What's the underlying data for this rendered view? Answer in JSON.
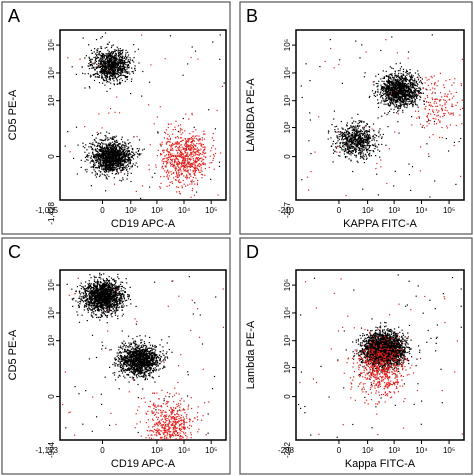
{
  "colors": {
    "population_a": "#000000",
    "population_b": "#e0201c",
    "frame": "#000000"
  },
  "chart_data": [
    {
      "type": "scatter",
      "panel": "A",
      "xlabel": "CD19 APC-A",
      "ylabel": "CD5 PE-A",
      "x_scale": "biexponential",
      "y_scale": "biexponential",
      "xlim_label": "-1,005",
      "ylim_label": "-1,428",
      "x_ticks": [
        "0",
        "10²",
        "10³",
        "10⁴",
        "10⁵"
      ],
      "y_ticks": [
        "0",
        "10³",
        "10⁴",
        "10⁵"
      ],
      "x_tick_values": [
        0,
        100,
        1000,
        10000,
        100000
      ],
      "y_tick_values": [
        0,
        1000,
        10000,
        100000
      ],
      "series": [
        {
          "clusters": [
            {
              "x": 10,
              "y": 20000,
              "count": 900
            },
            {
              "x": 10,
              "y": 0,
              "count": 1300
            }
          ]
        },
        {
          "clusters": [
            {
              "x": 10000,
              "y": 0,
              "count": 700
            }
          ]
        }
      ]
    },
    {
      "type": "scatter",
      "panel": "B",
      "xlabel": "KAPPA FITC-A",
      "ylabel": "LAMBDA PE-A",
      "x_scale": "biexponential",
      "y_scale": "biexponential",
      "xlim_label": "-210",
      "ylim_label": "-257",
      "x_ticks": [
        "0",
        "10²",
        "10³",
        "10⁴",
        "10⁵"
      ],
      "y_ticks": [
        "0",
        "10²",
        "10³",
        "10⁴",
        "10⁵"
      ],
      "x_tick_values": [
        0,
        100,
        1000,
        10000,
        100000
      ],
      "y_tick_values": [
        0,
        100,
        1000,
        10000,
        100000
      ],
      "series": [
        {
          "clusters": [
            {
              "x": 30,
              "y": 30,
              "count": 700
            },
            {
              "x": 1500,
              "y": 2500,
              "count": 1200
            }
          ]
        },
        {
          "clusters": [
            {
              "x": 40000,
              "y": 800,
              "count": 160
            }
          ]
        }
      ]
    },
    {
      "type": "scatter",
      "panel": "C",
      "xlabel": "CD19 APC-A",
      "ylabel": "CD5 PE-A",
      "x_scale": "biexponential",
      "y_scale": "biexponential",
      "xlim_label": "-1,173",
      "ylim_label": "-964",
      "x_ticks": [
        "0",
        "10³",
        "10⁴",
        "10⁵"
      ],
      "y_ticks": [
        "0",
        "10³",
        "10⁴",
        "10⁵"
      ],
      "x_tick_values": [
        0,
        1000,
        10000,
        100000
      ],
      "y_tick_values": [
        0,
        1000,
        10000,
        100000
      ],
      "series": [
        {
          "clusters": [
            {
              "x": 0,
              "y": 40000,
              "count": 1500
            },
            {
              "x": 200,
              "y": 200,
              "count": 1300
            }
          ]
        },
        {
          "clusters": [
            {
              "x": 3000,
              "y": -100,
              "count": 550
            }
          ]
        }
      ]
    },
    {
      "type": "scatter",
      "panel": "D",
      "xlabel": "Kappa FITC-A",
      "ylabel": "Lambda PE-A",
      "x_scale": "biexponential",
      "y_scale": "biexponential",
      "xlim_label": "-208",
      "ylim_label": "-242",
      "x_ticks": [
        "0",
        "10²",
        "10³",
        "10⁴",
        "10⁵"
      ],
      "y_ticks": [
        "0",
        "10²",
        "10³",
        "10⁴",
        "10⁵"
      ],
      "x_tick_values": [
        0,
        100,
        1000,
        10000,
        100000
      ],
      "y_tick_values": [
        0,
        100,
        1000,
        10000,
        100000
      ],
      "series": [
        {
          "clusters": [
            {
              "x": 400,
              "y": 500,
              "count": 2600
            }
          ]
        },
        {
          "clusters": [
            {
              "x": 300,
              "y": 100,
              "count": 600
            }
          ]
        }
      ]
    }
  ]
}
